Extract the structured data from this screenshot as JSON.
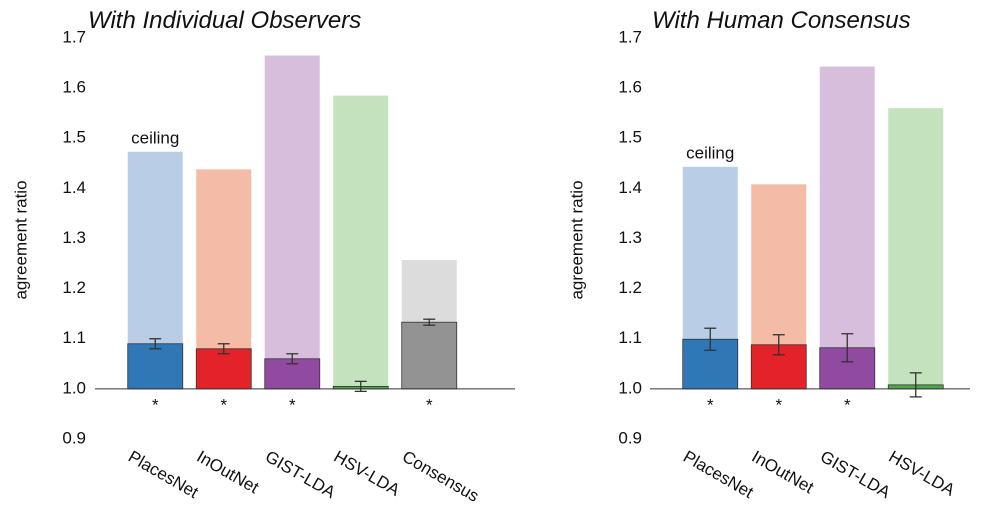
{
  "chart_data": [
    {
      "type": "bar",
      "title": "With Individual Observers",
      "ylabel": "agreement ratio",
      "categories": [
        "PlacesNet",
        "InOutNet",
        "GIST-LDA",
        "HSV-LDA",
        "Consensus"
      ],
      "ceiling_values": [
        1.473,
        1.438,
        1.665,
        1.585,
        1.257
      ],
      "values": [
        1.09,
        1.08,
        1.06,
        1.005,
        1.133
      ],
      "errors": [
        0.01,
        0.01,
        0.01,
        0.01,
        0.006
      ],
      "markers": [
        "*",
        "*",
        "*",
        null,
        "*"
      ],
      "annotation": "ceiling",
      "colors": [
        "#2f78b5",
        "#e42229",
        "#904ba0",
        "#4ca64a",
        "#939393"
      ],
      "ceiling_colors": [
        "#bacde6",
        "#f4bba7",
        "#d8bedd",
        "#c5e2be",
        "#dcdcdc"
      ],
      "baseline": 1,
      "ylim": [
        0.9,
        1.7
      ],
      "yticks": [
        0.9,
        {
          "value": 1,
          "label": "1.0"
        },
        1.1,
        1.2,
        1.3,
        1.4,
        1.5,
        1.6,
        1.7
      ]
    },
    {
      "type": "bar",
      "title": "With Human Consensus",
      "ylabel": "agreement ratio",
      "categories": [
        "PlacesNet",
        "InOutNet",
        "GIST-LDA",
        "HSV-LDA"
      ],
      "ceiling_values": [
        1.443,
        1.408,
        1.643,
        1.56
      ],
      "values": [
        1.099,
        1.088,
        1.082,
        1.008
      ],
      "errors": [
        0.022,
        0.02,
        0.028,
        0.024
      ],
      "markers": [
        "*",
        "*",
        "*",
        null
      ],
      "annotation": "ceiling",
      "colors": [
        "#2f78b5",
        "#e42229",
        "#904ba0",
        "#4ca64a"
      ],
      "ceiling_colors": [
        "#bacde6",
        "#f4bba7",
        "#d8bedd",
        "#c5e2be"
      ],
      "baseline": 1,
      "ylim": [
        0.9,
        1.7
      ],
      "yticks": [
        0.9,
        {
          "value": 1,
          "label": "1.0"
        },
        1.1,
        1.2,
        1.3,
        1.4,
        1.5,
        1.6,
        1.7
      ]
    }
  ]
}
